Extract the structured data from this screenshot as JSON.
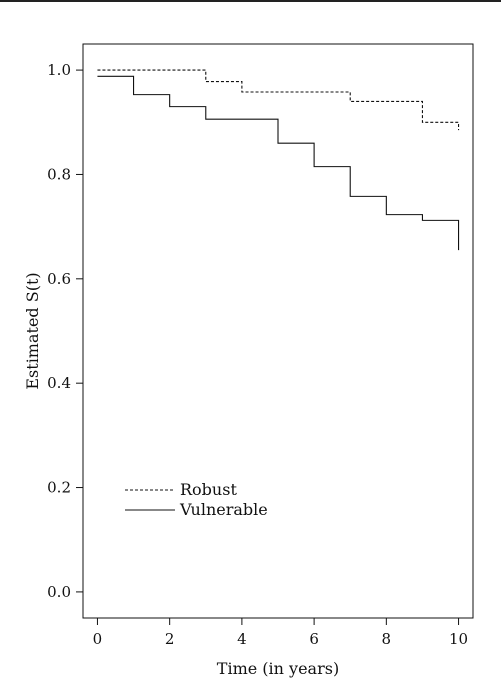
{
  "chart_data": {
    "type": "line",
    "step": true,
    "xlabel": "Time (in years)",
    "ylabel": "Estimated S(t)",
    "xlim": [
      -0.4,
      10.4
    ],
    "ylim": [
      -0.05,
      1.05
    ],
    "xticks": [
      0,
      2,
      4,
      6,
      8,
      10
    ],
    "xtick_labels": [
      "0",
      "2",
      "4",
      "6",
      "8",
      "10"
    ],
    "yticks": [
      0.0,
      0.2,
      0.4,
      0.6,
      0.8,
      1.0
    ],
    "ytick_labels": [
      "0.0",
      "0.2",
      "0.4",
      "0.6",
      "0.8",
      "1.0"
    ],
    "legend_position": "bottom-left",
    "series": [
      {
        "name": "Robust",
        "line_style": "dotted",
        "x": [
          0,
          3,
          3.5,
          4,
          7,
          9,
          10
        ],
        "y": [
          1.0,
          0.978,
          0.978,
          0.958,
          0.94,
          0.9,
          0.885
        ]
      },
      {
        "name": "Vulnerable",
        "line_style": "solid",
        "x": [
          0,
          1,
          2,
          3,
          4.5,
          5,
          6,
          7,
          8,
          9,
          10
        ],
        "y": [
          0.988,
          0.953,
          0.93,
          0.906,
          0.906,
          0.86,
          0.815,
          0.758,
          0.723,
          0.712,
          0.655
        ]
      }
    ]
  }
}
